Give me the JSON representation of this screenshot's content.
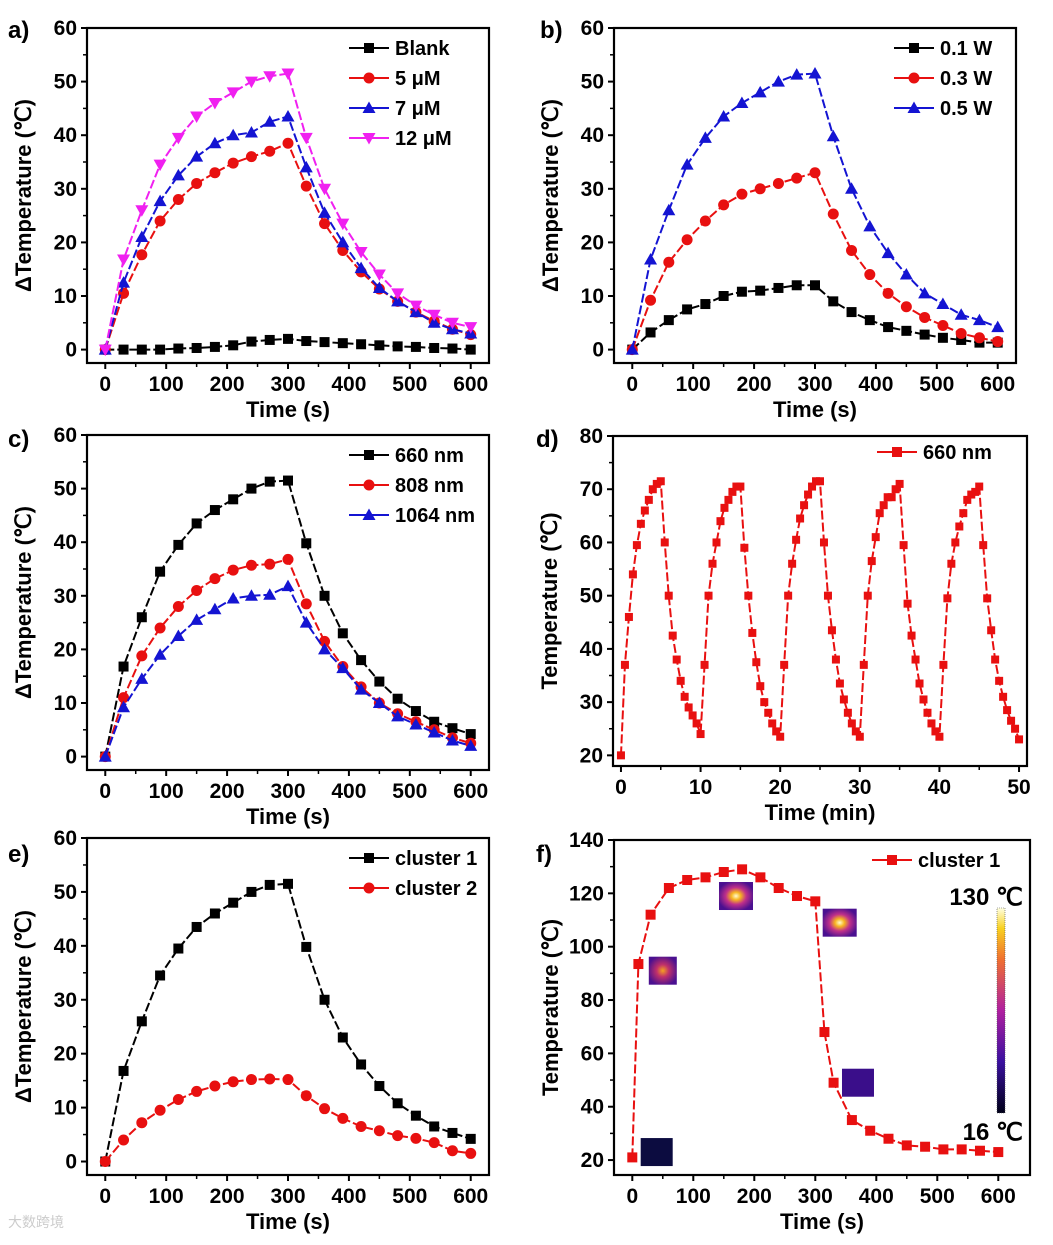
{
  "watermark": "大数跨境",
  "chart_data": [
    {
      "panel": "a)",
      "type": "line",
      "xlabel": "Time (s)",
      "ylabel": "ΔTemperature (℃)",
      "xlim": [
        -30,
        630
      ],
      "ylim": [
        -2.5,
        60
      ],
      "xticks": [
        0,
        100,
        200,
        300,
        400,
        500,
        600
      ],
      "yticks": [
        0,
        10,
        20,
        30,
        40,
        50,
        60
      ],
      "legend_position": "top-right",
      "x": [
        0,
        30,
        60,
        90,
        120,
        150,
        180,
        210,
        240,
        270,
        300,
        330,
        360,
        390,
        420,
        450,
        480,
        510,
        540,
        570,
        600
      ],
      "series": [
        {
          "name": "Blank",
          "color": "#000000",
          "marker": "square",
          "values": [
            0,
            0,
            0,
            0,
            0.2,
            0.3,
            0.5,
            0.8,
            1.5,
            1.8,
            2,
            1.6,
            1.4,
            1.2,
            1,
            0.8,
            0.6,
            0.5,
            0.3,
            0.2,
            0
          ]
        },
        {
          "name": "5 μM",
          "color": "#e81010",
          "marker": "circle",
          "values": [
            0,
            10.5,
            17.7,
            24,
            28,
            31,
            33,
            34.8,
            36,
            37,
            38.5,
            30.5,
            23.5,
            18.5,
            14.5,
            11.3,
            9,
            7,
            5.3,
            3.8,
            2.8
          ]
        },
        {
          "name": "7 μM",
          "color": "#1414d2",
          "marker": "triangle-up",
          "values": [
            0,
            12.5,
            21,
            27.7,
            32.5,
            36,
            38.5,
            40,
            40.5,
            42.5,
            43.5,
            34,
            25.5,
            20,
            15.2,
            11.5,
            9,
            7,
            5,
            3.8,
            3
          ]
        },
        {
          "name": "12 μM",
          "color": "#f020f0",
          "marker": "triangle-down",
          "values": [
            0,
            16.8,
            26,
            34.5,
            39.5,
            43.5,
            46,
            48,
            50,
            51,
            51.5,
            39.5,
            30,
            23.5,
            18.2,
            14,
            10.5,
            8.2,
            6.5,
            5,
            4.2
          ]
        }
      ]
    },
    {
      "panel": "b)",
      "type": "line",
      "xlabel": "Time (s)",
      "ylabel": "ΔTemperature (℃)",
      "xlim": [
        -30,
        630
      ],
      "ylim": [
        -2.5,
        60
      ],
      "xticks": [
        0,
        100,
        200,
        300,
        400,
        500,
        600
      ],
      "yticks": [
        0,
        10,
        20,
        30,
        40,
        50,
        60
      ],
      "legend_position": "top-right",
      "x": [
        0,
        30,
        60,
        90,
        120,
        150,
        180,
        210,
        240,
        270,
        300,
        330,
        360,
        390,
        420,
        450,
        480,
        510,
        540,
        570,
        600
      ],
      "series": [
        {
          "name": "0.1 W",
          "color": "#000000",
          "marker": "square",
          "values": [
            0,
            3.2,
            5.5,
            7.5,
            8.5,
            10,
            10.8,
            11,
            11.5,
            12,
            12,
            9,
            7,
            5.5,
            4.2,
            3.5,
            2.8,
            2.2,
            1.8,
            1.3,
            1.3
          ]
        },
        {
          "name": "0.3 W",
          "color": "#e81010",
          "marker": "circle",
          "values": [
            0,
            9.2,
            16.3,
            20.5,
            24,
            27,
            29,
            30,
            31,
            32,
            33,
            25.3,
            18.5,
            14,
            10.5,
            8,
            6,
            4.5,
            3,
            2.2,
            1.5
          ]
        },
        {
          "name": "0.5 W",
          "color": "#1414d2",
          "marker": "triangle-up",
          "values": [
            0,
            16.8,
            26,
            34.5,
            39.5,
            43.5,
            46,
            48,
            50,
            51.3,
            51.5,
            39.8,
            30,
            23,
            18,
            14,
            10.5,
            8.5,
            6.5,
            5.5,
            4.2
          ]
        }
      ]
    },
    {
      "panel": "c)",
      "type": "line",
      "xlabel": "Time (s)",
      "ylabel": "ΔTemperature (℃)",
      "xlim": [
        -30,
        630
      ],
      "ylim": [
        -2.5,
        60
      ],
      "xticks": [
        0,
        100,
        200,
        300,
        400,
        500,
        600
      ],
      "yticks": [
        0,
        10,
        20,
        30,
        40,
        50,
        60
      ],
      "legend_position": "top-right",
      "x": [
        0,
        30,
        60,
        90,
        120,
        150,
        180,
        210,
        240,
        270,
        300,
        330,
        360,
        390,
        420,
        450,
        480,
        510,
        540,
        570,
        600
      ],
      "series": [
        {
          "name": "660 nm",
          "color": "#000000",
          "marker": "square",
          "values": [
            0,
            16.8,
            26,
            34.5,
            39.5,
            43.5,
            46,
            48,
            50,
            51.3,
            51.5,
            39.8,
            30,
            23,
            18,
            14,
            10.8,
            8.5,
            6.5,
            5.3,
            4.2
          ]
        },
        {
          "name": "808 nm",
          "color": "#e81010",
          "marker": "circle",
          "values": [
            0,
            11,
            18.8,
            24,
            28,
            31,
            33.2,
            34.8,
            35.7,
            35.9,
            36.8,
            28.5,
            21.5,
            16.8,
            13,
            10,
            8,
            6.5,
            5,
            3.5,
            2.5
          ]
        },
        {
          "name": "1064 nm",
          "color": "#1414d2",
          "marker": "triangle-up",
          "values": [
            0,
            9.2,
            14.5,
            19,
            22.5,
            25.5,
            27.5,
            29.5,
            30,
            30.2,
            31.8,
            25,
            20,
            16.5,
            12.5,
            10,
            7.5,
            6,
            4.5,
            3,
            2
          ]
        }
      ]
    },
    {
      "panel": "d)",
      "type": "line",
      "xlabel": "Time (min)",
      "ylabel": "Temperature (℃)",
      "xlim": [
        -1,
        51
      ],
      "ylim": [
        18,
        80
      ],
      "xticks": [
        0,
        10,
        20,
        30,
        40,
        50
      ],
      "yticks": [
        20,
        30,
        40,
        50,
        60,
        70,
        80
      ],
      "legend_position": "top-right",
      "x_start": 0,
      "x_step": 0.5,
      "series": [
        {
          "name": "660 nm",
          "color": "#e81010",
          "marker": "square",
          "values": [
            20,
            37,
            46,
            54,
            59.5,
            63.5,
            66,
            68,
            70,
            71,
            71.5,
            60,
            50,
            42.5,
            38,
            34,
            31,
            29,
            27.5,
            26,
            24,
            37,
            50,
            56,
            60,
            64,
            66.5,
            68,
            69.5,
            70.5,
            70.5,
            59,
            50,
            43,
            37.5,
            33,
            30,
            28,
            26,
            24.5,
            23.5,
            37,
            50,
            56,
            60.5,
            64.5,
            67,
            69,
            70.5,
            71.5,
            71.5,
            60,
            50,
            43.5,
            38,
            33.5,
            30.5,
            28,
            26,
            24.5,
            23.5,
            37,
            50,
            56.5,
            61,
            65.5,
            67,
            68.5,
            68.5,
            70,
            71,
            59.5,
            48.5,
            42.5,
            38,
            33.5,
            30.5,
            28,
            26,
            24.5,
            23.5,
            37,
            49.5,
            56,
            60,
            63,
            65.5,
            68,
            69,
            69.5,
            70.5,
            59.5,
            49.5,
            43.5,
            38,
            34,
            31,
            28.5,
            26.5,
            25,
            23
          ]
        }
      ]
    },
    {
      "panel": "e)",
      "type": "line",
      "xlabel": "Time (s)",
      "ylabel": "ΔTemperature (℃)",
      "xlim": [
        -30,
        630
      ],
      "ylim": [
        -2.5,
        60
      ],
      "xticks": [
        0,
        100,
        200,
        300,
        400,
        500,
        600
      ],
      "yticks": [
        0,
        10,
        20,
        30,
        40,
        50,
        60
      ],
      "legend_position": "top-right",
      "x": [
        0,
        30,
        60,
        90,
        120,
        150,
        180,
        210,
        240,
        270,
        300,
        330,
        360,
        390,
        420,
        450,
        480,
        510,
        540,
        570,
        600
      ],
      "series": [
        {
          "name": "cluster 1",
          "color": "#000000",
          "marker": "square",
          "values": [
            0,
            16.8,
            26,
            34.5,
            39.5,
            43.5,
            46,
            48,
            50,
            51.3,
            51.5,
            39.8,
            30,
            23,
            18,
            14,
            10.8,
            8.5,
            6.5,
            5.3,
            4.2
          ]
        },
        {
          "name": "cluster 2",
          "color": "#e81010",
          "marker": "circle",
          "values": [
            0,
            4,
            7.2,
            9.5,
            11.5,
            13,
            14,
            14.8,
            15.2,
            15.3,
            15.2,
            12.2,
            9.8,
            8,
            6.5,
            5.7,
            4.8,
            4.3,
            3.5,
            2,
            1.5
          ]
        }
      ]
    },
    {
      "panel": "f)",
      "type": "line",
      "xlabel": "Time (s)",
      "ylabel": "Temperature (℃)",
      "xlim": [
        -30,
        652
      ],
      "ylim": [
        14.4,
        140
      ],
      "xticks": [
        0,
        100,
        200,
        300,
        400,
        500,
        600
      ],
      "yticks": [
        20,
        40,
        60,
        80,
        100,
        120,
        140
      ],
      "legend_position": "top-right",
      "x": [
        0,
        10,
        30,
        60,
        90,
        120,
        150,
        180,
        210,
        240,
        270,
        300,
        315,
        330,
        360,
        390,
        420,
        450,
        480,
        510,
        540,
        570,
        600
      ],
      "series": [
        {
          "name": "cluster 1",
          "color": "#e81010",
          "marker": "square",
          "values": [
            21,
            93.5,
            112,
            122,
            125,
            126,
            128,
            129,
            126,
            122,
            119,
            117,
            68,
            49,
            35,
            31,
            28,
            25.5,
            25,
            24,
            24,
            23.5,
            23
          ]
        }
      ],
      "colorbar": {
        "max_label": "130 ℃",
        "min_label": "16 ℃",
        "max": 130,
        "min": 16
      },
      "thermal_images": [
        {
          "time": 40,
          "temp": 23,
          "intensity": 0
        },
        {
          "time": 50,
          "temp": 91,
          "intensity": 0.55
        },
        {
          "time": 170,
          "temp": 119,
          "intensity": 0.95
        },
        {
          "time": 340,
          "temp": 109,
          "intensity": 0.8
        },
        {
          "time": 370,
          "temp": 49,
          "intensity": 0.1
        }
      ]
    }
  ]
}
